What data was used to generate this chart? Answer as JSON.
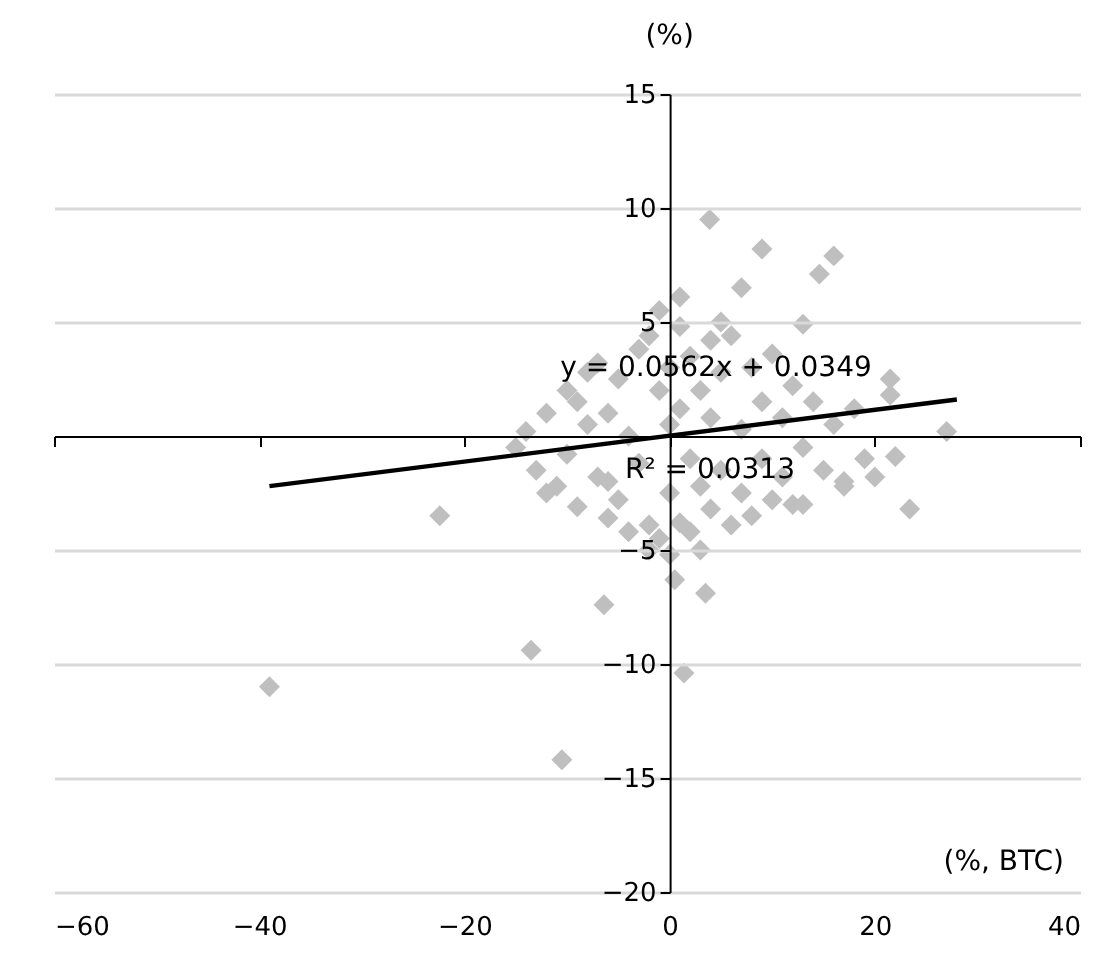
{
  "chart_data": {
    "type": "scatter",
    "ylabel": "(%)",
    "xlabel": "(%, BTC)",
    "xlim": [
      -60,
      40
    ],
    "xticks": [
      -60,
      -40,
      -20,
      0,
      20,
      40
    ],
    "ylim": [
      -20,
      15
    ],
    "yticks": [
      -20,
      -15,
      -10,
      -5,
      5,
      10,
      15
    ],
    "grid": "y",
    "annotations": [
      "y = 0.0562x + 0.0349",
      "R² = 0.0313"
    ],
    "series": [
      {
        "color": "#bfbfbf",
        "marker": "diamond",
        "x": [
          -39,
          -22.4,
          -13.5,
          -10.5,
          -6.4,
          1.4,
          0.5,
          3.5,
          3.9,
          9,
          16,
          14.6,
          13,
          7,
          1,
          27,
          23.4,
          22,
          21.5,
          17,
          19,
          13,
          21.5,
          -14,
          -13,
          -12,
          -11,
          -10,
          -10,
          -9,
          -9,
          -8,
          -8,
          -7,
          -7,
          -6,
          -6,
          -5,
          -5,
          -4,
          -4,
          -3,
          -3,
          -2,
          -2,
          -1,
          -1,
          0,
          0,
          0,
          1,
          1,
          1,
          2,
          2,
          2,
          3,
          3,
          4,
          4,
          4,
          5,
          5,
          6,
          6,
          7,
          7,
          8,
          8,
          9,
          9,
          10,
          10,
          11,
          11,
          12,
          12,
          13,
          14,
          15,
          16,
          18,
          -15,
          -12,
          -6,
          3,
          0,
          -2,
          5,
          -1,
          17,
          20
        ],
        "values": [
          -11,
          -3.5,
          -9.4,
          -14.2,
          -7.4,
          -10.4,
          -6.3,
          -6.9,
          9.5,
          8.2,
          7.9,
          7.1,
          4.9,
          6.5,
          6.1,
          0.2,
          -3.2,
          -0.9,
          1.8,
          -2,
          -1,
          -3,
          2.5,
          0.2,
          -1.5,
          1,
          -2.2,
          2,
          -0.8,
          1.5,
          -3.1,
          0.5,
          2.8,
          -1.8,
          3.2,
          -3.6,
          1,
          2.5,
          -2.8,
          -4.2,
          0,
          3.8,
          -1.2,
          4.4,
          -3.9,
          2,
          -4.5,
          0.5,
          3,
          -2.5,
          4.8,
          -3.8,
          1.2,
          -1,
          3.5,
          -4.2,
          2,
          -2.2,
          4.2,
          -3.2,
          0.8,
          -1.5,
          2.8,
          -3.9,
          4.4,
          0.3,
          -2.5,
          3,
          -3.5,
          1.5,
          -1,
          -2.8,
          3.6,
          0.8,
          -1.8,
          2.2,
          -3,
          -0.5,
          1.5,
          -1.5,
          0.5,
          1.2,
          -0.5,
          -2.5,
          -2,
          -5,
          -5.2,
          -5,
          5,
          5.5,
          -2.2,
          -1.8
        ]
      },
      {
        "type": "line",
        "color": "#000000",
        "x": [
          -39,
          28
        ],
        "values": [
          -2.2,
          1.6
        ]
      }
    ]
  }
}
